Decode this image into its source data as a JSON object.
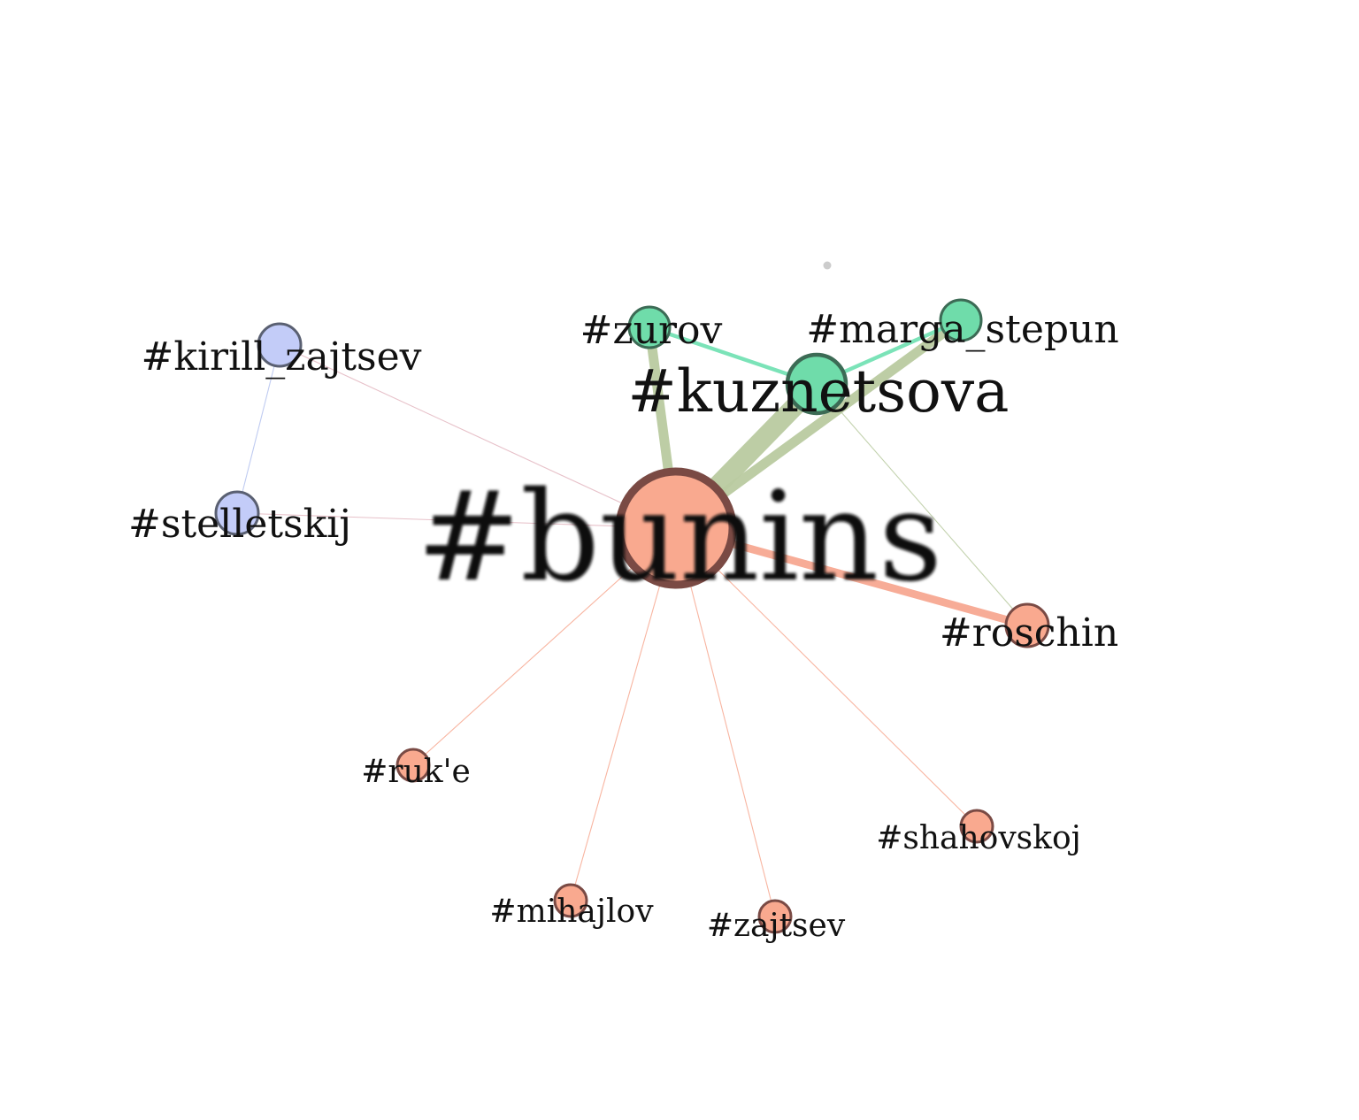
{
  "graph": {
    "colors": {
      "salmon": "#f9a98f",
      "salmon_stroke": "#7a4a44",
      "green": "#6fdcaa",
      "green_stroke": "#3c6b55",
      "blue": "#c3ccf8",
      "blue_stroke": "#5a6072",
      "edge_olive": "#b9caa0",
      "edge_green": "#74e2b4",
      "edge_salmon": "#f7a891",
      "edge_blue": "#b4c2ee",
      "edge_pink": "#e3b6c0"
    },
    "nodes": [
      {
        "id": "bunins",
        "label": "#bunins",
        "group": "salmon",
        "weight": 10
      },
      {
        "id": "kuznetsova",
        "label": "#kuznetsova",
        "group": "green",
        "weight": 6
      },
      {
        "id": "zurov",
        "label": "#zurov",
        "group": "green",
        "weight": 3
      },
      {
        "id": "marga_stepun",
        "label": "#marga_stepun",
        "group": "green",
        "weight": 3
      },
      {
        "id": "kirill_zajtsev",
        "label": "#kirill_zajtsev",
        "group": "blue",
        "weight": 3
      },
      {
        "id": "stelletskij",
        "label": "#stelletskij",
        "group": "blue",
        "weight": 3
      },
      {
        "id": "roschin",
        "label": "#roschin",
        "group": "salmon",
        "weight": 3
      },
      {
        "id": "ruke",
        "label": "#ruk'e",
        "group": "salmon",
        "weight": 1
      },
      {
        "id": "mihajlov",
        "label": "#mihajlov",
        "group": "salmon",
        "weight": 1
      },
      {
        "id": "zajtsev",
        "label": "#zajtsev",
        "group": "salmon",
        "weight": 1
      },
      {
        "id": "shahovskoj",
        "label": "#shahovskoj",
        "group": "salmon",
        "weight": 1
      }
    ],
    "edges": [
      {
        "source": "bunins",
        "target": "kuznetsova",
        "weight": 10,
        "color": "edge_olive"
      },
      {
        "source": "bunins",
        "target": "zurov",
        "weight": 5,
        "color": "edge_olive"
      },
      {
        "source": "bunins",
        "target": "marga_stepun",
        "weight": 5,
        "color": "edge_olive"
      },
      {
        "source": "bunins",
        "target": "roschin",
        "weight": 4,
        "color": "edge_salmon"
      },
      {
        "source": "bunins",
        "target": "kirill_zajtsev",
        "weight": 0.5,
        "color": "edge_pink"
      },
      {
        "source": "bunins",
        "target": "stelletskij",
        "weight": 0.5,
        "color": "edge_pink"
      },
      {
        "source": "bunins",
        "target": "ruke",
        "weight": 0.5,
        "color": "edge_salmon"
      },
      {
        "source": "bunins",
        "target": "mihajlov",
        "weight": 0.5,
        "color": "edge_salmon"
      },
      {
        "source": "bunins",
        "target": "zajtsev",
        "weight": 0.5,
        "color": "edge_salmon"
      },
      {
        "source": "bunins",
        "target": "shahovskoj",
        "weight": 0.5,
        "color": "edge_salmon"
      },
      {
        "source": "kuznetsova",
        "target": "zurov",
        "weight": 2,
        "color": "edge_green"
      },
      {
        "source": "kuznetsova",
        "target": "marga_stepun",
        "weight": 2,
        "color": "edge_green"
      },
      {
        "source": "kuznetsova",
        "target": "roschin",
        "weight": 0.5,
        "color": "edge_olive"
      },
      {
        "source": "kirill_zajtsev",
        "target": "stelletskij",
        "weight": 0.5,
        "color": "edge_blue"
      }
    ]
  }
}
